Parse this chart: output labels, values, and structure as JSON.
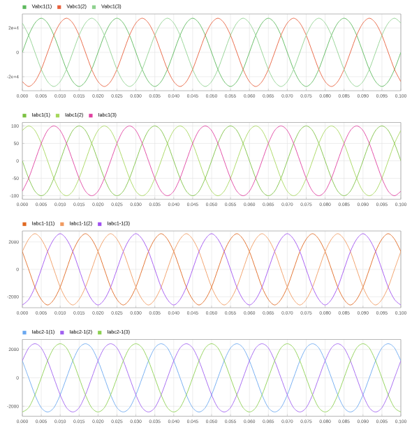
{
  "chart_data": [
    {
      "type": "line",
      "legend": "top left",
      "grid": true,
      "marker": "none",
      "line_style": "solid",
      "x": [
        0,
        0.00167,
        0.00333,
        0.005,
        0.00667,
        0.00833,
        0.01,
        0.01167,
        0.01333,
        0.015,
        0.01667,
        0.01833,
        0.02,
        0.02167,
        0.02333,
        0.025,
        0.02667,
        0.02833,
        0.03,
        0.03167,
        0.03333,
        0.035,
        0.03667,
        0.03833,
        0.04,
        0.04167,
        0.04333,
        0.045,
        0.04667,
        0.04833,
        0.05,
        0.05167,
        0.05333,
        0.055,
        0.05667,
        0.05833,
        0.06,
        0.06167,
        0.06333,
        0.065,
        0.06667,
        0.06833,
        0.07,
        0.07167,
        0.07333,
        0.075,
        0.07667,
        0.07833,
        0.08,
        0.08167,
        0.08333,
        0.085,
        0.08667,
        0.08833,
        0.09,
        0.09167,
        0.09333,
        0.095,
        0.09667,
        0.09833,
        0.1
      ],
      "xlim": [
        0,
        0.1
      ],
      "xticks": [
        {
          "value": 0,
          "label": "0.000"
        },
        {
          "value": 0.005,
          "label": "0.005"
        },
        {
          "value": 0.01,
          "label": "0.010"
        },
        {
          "value": 0.015,
          "label": "0.015"
        },
        {
          "value": 0.02,
          "label": "0.020"
        },
        {
          "value": 0.025,
          "label": "0.025"
        },
        {
          "value": 0.03,
          "label": "0.030"
        },
        {
          "value": 0.035,
          "label": "0.035"
        },
        {
          "value": 0.04,
          "label": "0.040"
        },
        {
          "value": 0.045,
          "label": "0.045"
        },
        {
          "value": 0.05,
          "label": "0.050"
        },
        {
          "value": 0.055,
          "label": "0.055"
        },
        {
          "value": 0.06,
          "label": "0.060"
        },
        {
          "value": 0.065,
          "label": "0.065"
        },
        {
          "value": 0.07,
          "label": "0.070"
        },
        {
          "value": 0.075,
          "label": "0.075"
        },
        {
          "value": 0.08,
          "label": "0.080"
        },
        {
          "value": 0.085,
          "label": "0.085"
        },
        {
          "value": 0.09,
          "label": "0.090"
        },
        {
          "value": 0.095,
          "label": "0.095"
        },
        {
          "value": 0.1,
          "label": "0.100"
        }
      ],
      "ylim": [
        -31500,
        31500
      ],
      "yticks": [
        {
          "value": -20000,
          "label": "-2e+4"
        },
        0,
        {
          "value": 20000,
          "label": "2e+4"
        }
      ],
      "series": [
        {
          "name": "Vabc1(1)",
          "color": "#5cb85c",
          "values": [
            0,
            14000,
            24000,
            28000,
            24000,
            14000,
            0,
            -14000,
            -24000,
            -28000,
            -24000,
            -14000,
            0,
            14000,
            24000,
            28000,
            24000,
            14000,
            0,
            -14000,
            -24000,
            -28000,
            -24000,
            -14000,
            0,
            14000,
            24000,
            28000,
            24000,
            14000,
            0,
            -14000,
            -24000,
            -28000,
            -24000,
            -14000,
            0,
            14000,
            24000,
            28000,
            24000,
            14000,
            0,
            -14000,
            -24000,
            -28000,
            -24000,
            -14000,
            0,
            14000,
            24000,
            28000,
            24000,
            14000,
            0,
            -14000,
            -24000,
            -28000,
            -24000,
            -14000,
            0
          ]
        },
        {
          "name": "Vabc1(2)",
          "color": "#e8603c",
          "values": [
            -24000,
            -28000,
            -24000,
            -14000,
            0,
            14000,
            24000,
            28000,
            24000,
            14000,
            0,
            -14000,
            -24000,
            -28000,
            -24000,
            -14000,
            0,
            14000,
            24000,
            28000,
            24000,
            14000,
            0,
            -14000,
            -24000,
            -28000,
            -24000,
            -14000,
            0,
            14000,
            24000,
            28000,
            24000,
            14000,
            0,
            -14000,
            -24000,
            -28000,
            -24000,
            -14000,
            0,
            14000,
            24000,
            28000,
            24000,
            14000,
            0,
            -14000,
            -24000,
            -28000,
            -24000,
            -14000,
            0,
            14000,
            24000,
            28000,
            24000,
            14000,
            0,
            -14000,
            -24000
          ]
        },
        {
          "name": "Vabc1(3)",
          "color": "#8fd18f",
          "values": [
            24000,
            14000,
            0,
            -14000,
            -24000,
            -28000,
            -24000,
            -14000,
            0,
            14000,
            24000,
            28000,
            24000,
            14000,
            0,
            -14000,
            -24000,
            -28000,
            -24000,
            -14000,
            0,
            14000,
            24000,
            28000,
            24000,
            14000,
            0,
            -14000,
            -24000,
            -28000,
            -24000,
            -14000,
            0,
            14000,
            24000,
            28000,
            24000,
            14000,
            0,
            -14000,
            -24000,
            -28000,
            -24000,
            -14000,
            0,
            14000,
            24000,
            28000,
            24000,
            14000,
            0,
            -14000,
            -24000,
            -28000,
            -24000,
            -14000,
            0,
            14000,
            24000,
            28000,
            24000
          ]
        }
      ]
    },
    {
      "type": "line",
      "legend": "top left",
      "grid": true,
      "marker": "none",
      "line_style": "solid",
      "x": [
        0,
        0.00167,
        0.00333,
        0.005,
        0.00667,
        0.00833,
        0.01,
        0.01167,
        0.01333,
        0.015,
        0.01667,
        0.01833,
        0.02,
        0.02167,
        0.02333,
        0.025,
        0.02667,
        0.02833,
        0.03,
        0.03167,
        0.03333,
        0.035,
        0.03667,
        0.03833,
        0.04,
        0.04167,
        0.04333,
        0.045,
        0.04667,
        0.04833,
        0.05,
        0.05167,
        0.05333,
        0.055,
        0.05667,
        0.05833,
        0.06,
        0.06167,
        0.06333,
        0.065,
        0.06667,
        0.06833,
        0.07,
        0.07167,
        0.07333,
        0.075,
        0.07667,
        0.07833,
        0.08,
        0.08167,
        0.08333,
        0.085,
        0.08667,
        0.08833,
        0.09,
        0.09167,
        0.09333,
        0.095,
        0.09667,
        0.09833,
        0.1
      ],
      "xlim": [
        0,
        0.1
      ],
      "xticks": [
        {
          "value": 0,
          "label": "0.000"
        },
        {
          "value": 0.005,
          "label": "0.005"
        },
        {
          "value": 0.01,
          "label": "0.010"
        },
        {
          "value": 0.015,
          "label": "0.015"
        },
        {
          "value": 0.02,
          "label": "0.020"
        },
        {
          "value": 0.025,
          "label": "0.025"
        },
        {
          "value": 0.03,
          "label": "0.030"
        },
        {
          "value": 0.035,
          "label": "0.035"
        },
        {
          "value": 0.04,
          "label": "0.040"
        },
        {
          "value": 0.045,
          "label": "0.045"
        },
        {
          "value": 0.05,
          "label": "0.050"
        },
        {
          "value": 0.055,
          "label": "0.055"
        },
        {
          "value": 0.06,
          "label": "0.060"
        },
        {
          "value": 0.065,
          "label": "0.065"
        },
        {
          "value": 0.07,
          "label": "0.070"
        },
        {
          "value": 0.075,
          "label": "0.075"
        },
        {
          "value": 0.08,
          "label": "0.080"
        },
        {
          "value": 0.085,
          "label": "0.085"
        },
        {
          "value": 0.09,
          "label": "0.090"
        },
        {
          "value": 0.095,
          "label": "0.095"
        },
        {
          "value": 0.1,
          "label": "0.100"
        }
      ],
      "ylim": [
        -110,
        110
      ],
      "yticks": [
        -100,
        -50,
        0,
        50,
        100
      ],
      "series": [
        {
          "name": "Iabc1(1)",
          "color": "#7cc142",
          "values": [
            0,
            -50,
            -87,
            -100,
            -87,
            -50,
            0,
            50,
            87,
            100,
            87,
            50,
            0,
            -50,
            -87,
            -100,
            -87,
            -50,
            0,
            50,
            87,
            100,
            87,
            50,
            0,
            -50,
            -87,
            -100,
            -87,
            -50,
            0,
            50,
            87,
            100,
            87,
            50,
            0,
            -50,
            -87,
            -100,
            -87,
            -50,
            0,
            50,
            87,
            100,
            87,
            50,
            0,
            -50,
            -87,
            -100,
            -87,
            -50,
            0,
            50,
            87,
            100,
            87,
            50,
            0
          ]
        },
        {
          "name": "Iabc1(2)",
          "color": "#a6d75b",
          "values": [
            87,
            100,
            87,
            50,
            0,
            -50,
            -87,
            -100,
            -87,
            -50,
            0,
            50,
            87,
            100,
            87,
            50,
            0,
            -50,
            -87,
            -100,
            -87,
            -50,
            0,
            50,
            87,
            100,
            87,
            50,
            0,
            -50,
            -87,
            -100,
            -87,
            -50,
            0,
            50,
            87,
            100,
            87,
            50,
            0,
            -50,
            -87,
            -100,
            -87,
            -50,
            0,
            50,
            87,
            100,
            87,
            50,
            0,
            -50,
            -87,
            -100,
            -87,
            -50,
            0,
            50,
            87
          ]
        },
        {
          "name": "Iabc1(3)",
          "color": "#e040a0",
          "values": [
            -87,
            -50,
            0,
            50,
            87,
            100,
            87,
            50,
            0,
            -50,
            -87,
            -100,
            -87,
            -50,
            0,
            50,
            87,
            100,
            87,
            50,
            0,
            -50,
            -87,
            -100,
            -87,
            -50,
            0,
            50,
            87,
            100,
            87,
            50,
            0,
            -50,
            -87,
            -100,
            -87,
            -50,
            0,
            50,
            87,
            100,
            87,
            50,
            0,
            -50,
            -87,
            -100,
            -87,
            -50,
            0,
            50,
            87,
            100,
            87,
            50,
            0,
            -50,
            -87,
            -100,
            -87
          ]
        }
      ]
    },
    {
      "type": "line",
      "legend": "top left",
      "grid": true,
      "marker": "none",
      "line_style": "solid",
      "x": [
        0,
        0.00167,
        0.00333,
        0.005,
        0.00667,
        0.00833,
        0.01,
        0.01167,
        0.01333,
        0.015,
        0.01667,
        0.01833,
        0.02,
        0.02167,
        0.02333,
        0.025,
        0.02667,
        0.02833,
        0.03,
        0.03167,
        0.03333,
        0.035,
        0.03667,
        0.03833,
        0.04,
        0.04167,
        0.04333,
        0.045,
        0.04667,
        0.04833,
        0.05,
        0.05167,
        0.05333,
        0.055,
        0.05667,
        0.05833,
        0.06,
        0.06167,
        0.06333,
        0.065,
        0.06667,
        0.06833,
        0.07,
        0.07167,
        0.07333,
        0.075,
        0.07667,
        0.07833,
        0.08,
        0.08167,
        0.08333,
        0.085,
        0.08667,
        0.08833,
        0.09,
        0.09167,
        0.09333,
        0.095,
        0.09667,
        0.09833,
        0.1
      ],
      "xlim": [
        0,
        0.1
      ],
      "xticks": [
        {
          "value": 0,
          "label": "0.000"
        },
        {
          "value": 0.005,
          "label": "0.005"
        },
        {
          "value": 0.01,
          "label": "0.010"
        },
        {
          "value": 0.015,
          "label": "0.015"
        },
        {
          "value": 0.02,
          "label": "0.020"
        },
        {
          "value": 0.025,
          "label": "0.025"
        },
        {
          "value": 0.03,
          "label": "0.030"
        },
        {
          "value": 0.035,
          "label": "0.035"
        },
        {
          "value": 0.04,
          "label": "0.040"
        },
        {
          "value": 0.045,
          "label": "0.045"
        },
        {
          "value": 0.05,
          "label": "0.050"
        },
        {
          "value": 0.055,
          "label": "0.055"
        },
        {
          "value": 0.06,
          "label": "0.060"
        },
        {
          "value": 0.065,
          "label": "0.065"
        },
        {
          "value": 0.07,
          "label": "0.070"
        },
        {
          "value": 0.075,
          "label": "0.075"
        },
        {
          "value": 0.08,
          "label": "0.080"
        },
        {
          "value": 0.085,
          "label": "0.085"
        },
        {
          "value": 0.09,
          "label": "0.090"
        },
        {
          "value": 0.095,
          "label": "0.095"
        },
        {
          "value": 0.1,
          "label": "0.100"
        }
      ],
      "ylim": [
        -2800,
        2800
      ],
      "yticks": [
        -2000,
        0,
        2000
      ],
      "series": [
        {
          "name": "Iabc1-1(1)",
          "color": "#e06820",
          "values": [
            1300,
            0,
            -1300,
            -2200,
            -2600,
            -2200,
            -1300,
            0,
            1300,
            2200,
            2600,
            2200,
            1300,
            0,
            -1300,
            -2200,
            -2600,
            -2200,
            -1300,
            0,
            1300,
            2200,
            2600,
            2200,
            1300,
            0,
            -1300,
            -2200,
            -2600,
            -2200,
            -1300,
            0,
            1300,
            2200,
            2600,
            2200,
            1300,
            0,
            -1300,
            -2200,
            -2600,
            -2200,
            -1300,
            0,
            1300,
            2200,
            2600,
            2200,
            1300,
            0,
            -1300,
            -2200,
            -2600,
            -2200,
            -1300,
            0,
            1300,
            2200,
            2600,
            2200,
            1300
          ]
        },
        {
          "name": "Iabc1-1(2)",
          "color": "#f09a60",
          "values": [
            1300,
            2200,
            2600,
            2200,
            1300,
            0,
            -1300,
            -2200,
            -2600,
            -2200,
            -1300,
            0,
            1300,
            2200,
            2600,
            2200,
            1300,
            0,
            -1300,
            -2200,
            -2600,
            -2200,
            -1300,
            0,
            1300,
            2200,
            2600,
            2200,
            1300,
            0,
            -1300,
            -2200,
            -2600,
            -2200,
            -1300,
            0,
            1300,
            2200,
            2600,
            2200,
            1300,
            0,
            -1300,
            -2200,
            -2600,
            -2200,
            -1300,
            0,
            1300,
            2200,
            2600,
            2200,
            1300,
            0,
            -1300,
            -2200,
            -2600,
            -2200,
            -1300,
            0,
            1300
          ]
        },
        {
          "name": "Iabc1-1(3)",
          "color": "#a050f0",
          "values": [
            -2600,
            -2200,
            -1300,
            0,
            1300,
            2200,
            2600,
            2200,
            1300,
            0,
            -1300,
            -2200,
            -2600,
            -2200,
            -1300,
            0,
            1300,
            2200,
            2600,
            2200,
            1300,
            0,
            -1300,
            -2200,
            -2600,
            -2200,
            -1300,
            0,
            1300,
            2200,
            2600,
            2200,
            1300,
            0,
            -1300,
            -2200,
            -2600,
            -2200,
            -1300,
            0,
            1300,
            2200,
            2600,
            2200,
            1300,
            0,
            -1300,
            -2200,
            -2600,
            -2200,
            -1300,
            0,
            1300,
            2200,
            2600,
            2200,
            1300,
            0,
            -1300,
            -2200,
            -2600
          ]
        }
      ]
    },
    {
      "type": "line",
      "legend": "top left",
      "grid": true,
      "marker": "none",
      "line_style": "solid",
      "x": [
        0,
        0.00167,
        0.00333,
        0.005,
        0.00667,
        0.00833,
        0.01,
        0.01167,
        0.01333,
        0.015,
        0.01667,
        0.01833,
        0.02,
        0.02167,
        0.02333,
        0.025,
        0.02667,
        0.02833,
        0.03,
        0.03167,
        0.03333,
        0.035,
        0.03667,
        0.03833,
        0.04,
        0.04167,
        0.04333,
        0.045,
        0.04667,
        0.04833,
        0.05,
        0.05167,
        0.05333,
        0.055,
        0.05667,
        0.05833,
        0.06,
        0.06167,
        0.06333,
        0.065,
        0.06667,
        0.06833,
        0.07,
        0.07167,
        0.07333,
        0.075,
        0.07667,
        0.07833,
        0.08,
        0.08167,
        0.08333,
        0.085,
        0.08667,
        0.08833,
        0.09,
        0.09167,
        0.09333,
        0.095,
        0.09667,
        0.09833,
        0.1
      ],
      "xlim": [
        0,
        0.1
      ],
      "xticks": [
        {
          "value": 0,
          "label": "0.000"
        },
        {
          "value": 0.005,
          "label": "0.005"
        },
        {
          "value": 0.01,
          "label": "0.010"
        },
        {
          "value": 0.015,
          "label": "0.015"
        },
        {
          "value": 0.02,
          "label": "0.020"
        },
        {
          "value": 0.025,
          "label": "0.025"
        },
        {
          "value": 0.03,
          "label": "0.030"
        },
        {
          "value": 0.035,
          "label": "0.035"
        },
        {
          "value": 0.04,
          "label": "0.040"
        },
        {
          "value": 0.045,
          "label": "0.045"
        },
        {
          "value": 0.05,
          "label": "0.050"
        },
        {
          "value": 0.055,
          "label": "0.055"
        },
        {
          "value": 0.06,
          "label": "0.060"
        },
        {
          "value": 0.065,
          "label": "0.065"
        },
        {
          "value": 0.07,
          "label": "0.070"
        },
        {
          "value": 0.075,
          "label": "0.075"
        },
        {
          "value": 0.08,
          "label": "0.080"
        },
        {
          "value": 0.085,
          "label": "0.085"
        },
        {
          "value": 0.09,
          "label": "0.090"
        },
        {
          "value": 0.095,
          "label": "0.095"
        },
        {
          "value": 0.1,
          "label": "0.100"
        }
      ],
      "ylim": [
        -2700,
        2700
      ],
      "yticks": [
        -2000,
        0,
        2000
      ],
      "series": [
        {
          "name": "Iabc2-1(1)",
          "color": "#6aa8f0",
          "values": [
            1200,
            0,
            -1200,
            -2100,
            -2400,
            -2100,
            -1200,
            0,
            1200,
            2100,
            2400,
            2100,
            1200,
            0,
            -1200,
            -2100,
            -2400,
            -2100,
            -1200,
            0,
            1200,
            2100,
            2400,
            2100,
            1200,
            0,
            -1200,
            -2100,
            -2400,
            -2100,
            -1200,
            0,
            1200,
            2100,
            2400,
            2100,
            1200,
            0,
            -1200,
            -2100,
            -2400,
            -2100,
            -1200,
            0,
            1200,
            2100,
            2400,
            2100,
            1200,
            0,
            -1200,
            -2100,
            -2400,
            -2100,
            -1200,
            0,
            1200,
            2100,
            2400,
            2100,
            1200
          ]
        },
        {
          "name": "Iabc2-1(2)",
          "color": "#a060f0",
          "values": [
            1200,
            2100,
            2400,
            2100,
            1200,
            0,
            -1200,
            -2100,
            -2400,
            -2100,
            -1200,
            0,
            1200,
            2100,
            2400,
            2100,
            1200,
            0,
            -1200,
            -2100,
            -2400,
            -2100,
            -1200,
            0,
            1200,
            2100,
            2400,
            2100,
            1200,
            0,
            -1200,
            -2100,
            -2400,
            -2100,
            -1200,
            0,
            1200,
            2100,
            2400,
            2100,
            1200,
            0,
            -1200,
            -2100,
            -2400,
            -2100,
            -1200,
            0,
            1200,
            2100,
            2400,
            2100,
            1200,
            0,
            -1200,
            -2100,
            -2400,
            -2100,
            -1200,
            0,
            1200
          ]
        },
        {
          "name": "Iabc2-1(3)",
          "color": "#8cd050",
          "values": [
            -2400,
            -2100,
            -1200,
            0,
            1200,
            2100,
            2400,
            2100,
            1200,
            0,
            -1200,
            -2100,
            -2400,
            -2100,
            -1200,
            0,
            1200,
            2100,
            2400,
            2100,
            1200,
            0,
            -1200,
            -2100,
            -2400,
            -2100,
            -1200,
            0,
            1200,
            2100,
            2400,
            2100,
            1200,
            0,
            -1200,
            -2100,
            -2400,
            -2100,
            -1200,
            0,
            1200,
            2100,
            2400,
            2100,
            1200,
            0,
            -1200,
            -2100,
            -2400,
            -2100,
            -1200,
            0,
            1200,
            2100,
            2400,
            2100,
            1200,
            0,
            -1200,
            -2100,
            -2400
          ]
        }
      ]
    }
  ]
}
